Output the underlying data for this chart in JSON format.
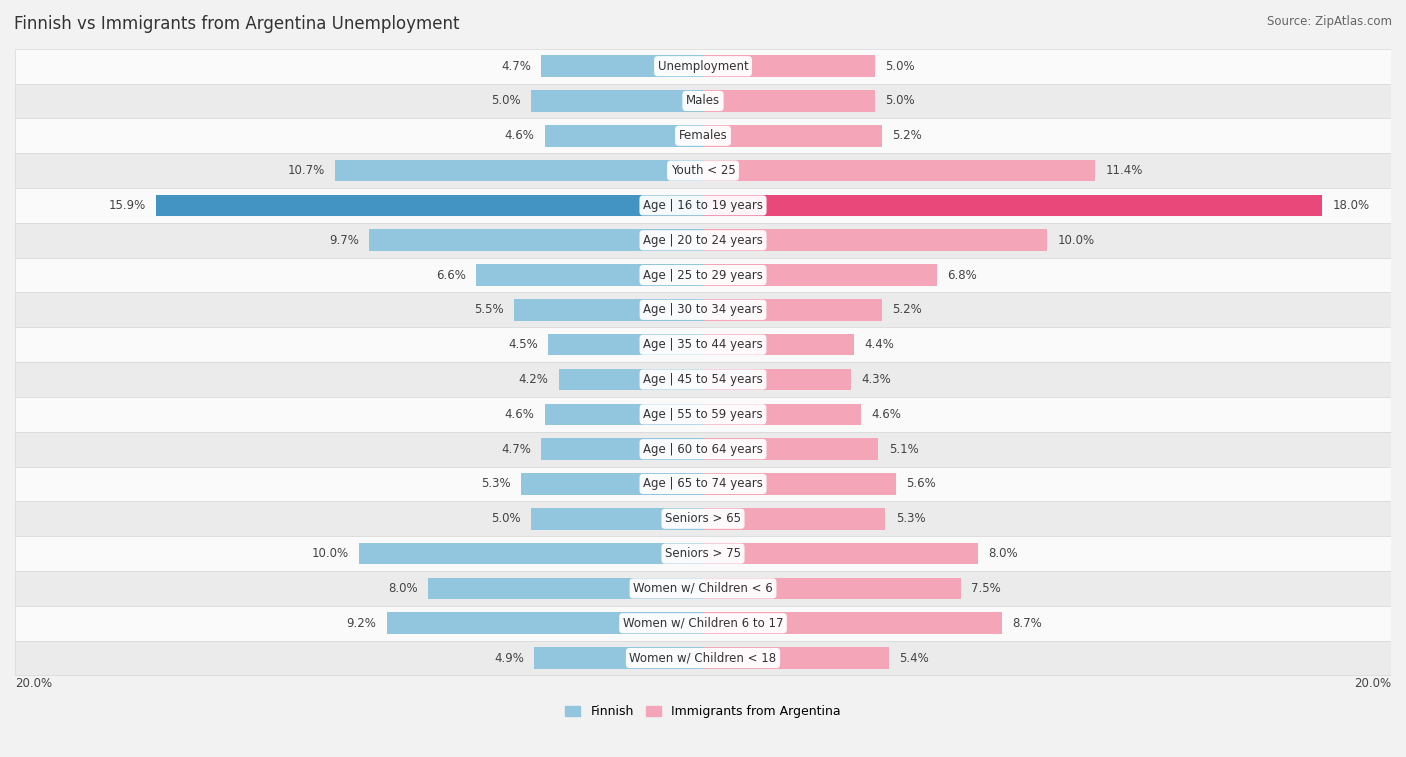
{
  "title": "Finnish vs Immigrants from Argentina Unemployment",
  "source": "Source: ZipAtlas.com",
  "categories": [
    "Unemployment",
    "Males",
    "Females",
    "Youth < 25",
    "Age | 16 to 19 years",
    "Age | 20 to 24 years",
    "Age | 25 to 29 years",
    "Age | 30 to 34 years",
    "Age | 35 to 44 years",
    "Age | 45 to 54 years",
    "Age | 55 to 59 years",
    "Age | 60 to 64 years",
    "Age | 65 to 74 years",
    "Seniors > 65",
    "Seniors > 75",
    "Women w/ Children < 6",
    "Women w/ Children 6 to 17",
    "Women w/ Children < 18"
  ],
  "finnish": [
    4.7,
    5.0,
    4.6,
    10.7,
    15.9,
    9.7,
    6.6,
    5.5,
    4.5,
    4.2,
    4.6,
    4.7,
    5.3,
    5.0,
    10.0,
    8.0,
    9.2,
    4.9
  ],
  "argentina": [
    5.0,
    5.0,
    5.2,
    11.4,
    18.0,
    10.0,
    6.8,
    5.2,
    4.4,
    4.3,
    4.6,
    5.1,
    5.6,
    5.3,
    8.0,
    7.5,
    8.7,
    5.4
  ],
  "finnish_color": "#92c5de",
  "argentina_color": "#f4a6b8",
  "highlight_finnish_color": "#4393c3",
  "highlight_argentina_color": "#e8497a",
  "highlight_row": 4,
  "bg_color": "#f2f2f2",
  "row_bg_light": "#fafafa",
  "row_bg_dark": "#ebebeb",
  "row_border": "#d8d8d8",
  "max_val": 20.0,
  "legend_finnish": "Finnish",
  "legend_argentina": "Immigrants from Argentina",
  "title_fontsize": 12,
  "source_fontsize": 8.5,
  "label_fontsize": 8.5,
  "cat_fontsize": 8.5,
  "val_fontsize": 8.5
}
